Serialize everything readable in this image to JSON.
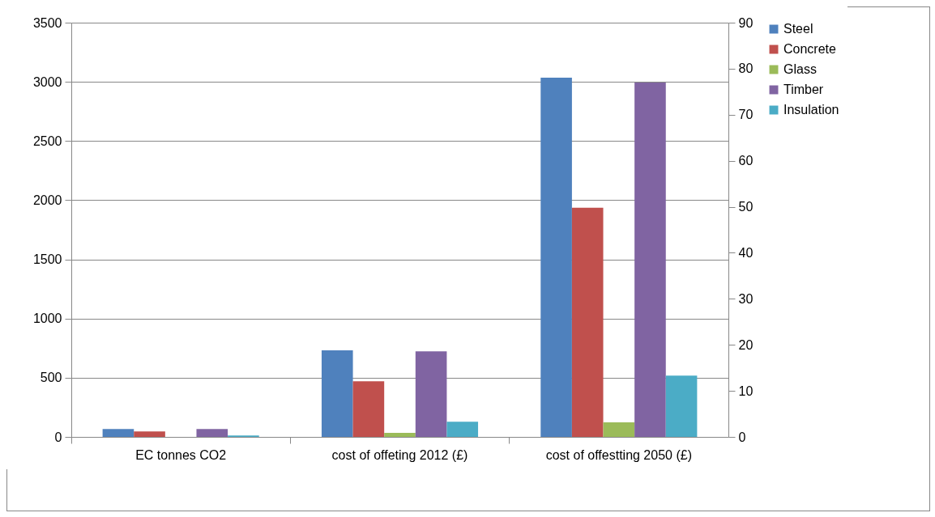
{
  "chart_data": {
    "type": "bar",
    "categories": [
      "EC tonnes CO2",
      "cost of offeting 2012 (£)",
      "cost of offestting 2050 (£)"
    ],
    "series": [
      {
        "name": "Steel",
        "color": "#4f81bd",
        "values": [
          66,
          731,
          3035
        ]
      },
      {
        "name": "Concrete",
        "color": "#c0504d",
        "values": [
          46,
          470,
          1936
        ]
      },
      {
        "name": "Glass",
        "color": "#9bbb59",
        "values": [
          0,
          34,
          123
        ]
      },
      {
        "name": "Timber",
        "color": "#8064a2",
        "values": [
          1.7,
          18.6,
          77
        ],
        "axis": "y2"
      },
      {
        "name": "Insulation",
        "color": "#4bacc6",
        "values": [
          0.3,
          3.3,
          13.3
        ],
        "axis": "y2"
      }
    ],
    "ylim": [
      0,
      3500
    ],
    "yticks": [
      0,
      500,
      1000,
      1500,
      2000,
      2500,
      3000,
      3500
    ],
    "y2lim": [
      0,
      90
    ],
    "y2ticks": [
      0,
      10,
      20,
      30,
      40,
      50,
      60,
      70,
      80,
      90
    ],
    "grid": "y",
    "legend": "right"
  }
}
